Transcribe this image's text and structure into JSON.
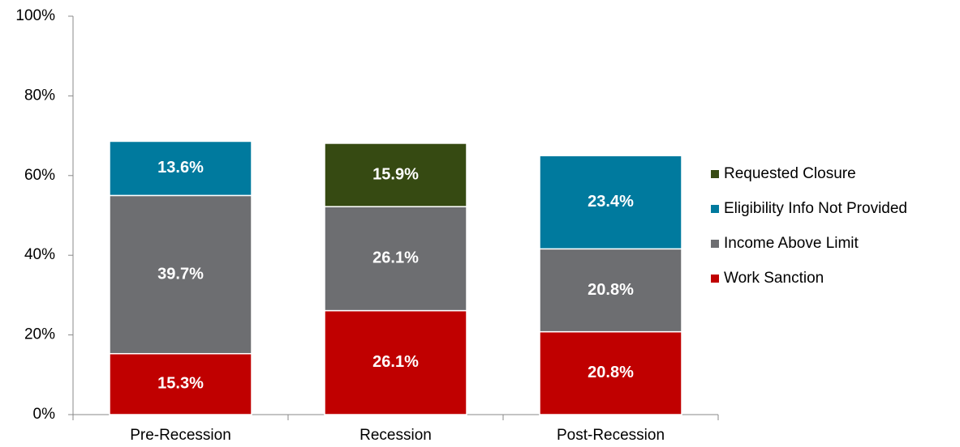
{
  "chart_data": {
    "type": "stacked_bar",
    "categories": [
      "Pre-Recession",
      "Recession",
      "Post-Recession"
    ],
    "series": [
      {
        "name": "Work Sanction",
        "color": "#c00000",
        "values": [
          15.3,
          26.1,
          20.8
        ],
        "value_labels": [
          "15.3%",
          "26.1%",
          "20.8%"
        ]
      },
      {
        "name": "Income Above Limit",
        "color": "#6d6e71",
        "values": [
          39.7,
          26.1,
          20.8
        ],
        "value_labels": [
          "39.7%",
          "26.1%",
          "20.8%"
        ]
      },
      {
        "name": "Eligibility Info Not Provided",
        "color": "#007a9e",
        "values": [
          13.6,
          null,
          23.4
        ],
        "value_labels": [
          "13.6%",
          null,
          "23.4%"
        ]
      },
      {
        "name": "Requested Closure",
        "color": "#364a12",
        "values": [
          null,
          15.9,
          null
        ],
        "value_labels": [
          null,
          "15.9%",
          null
        ]
      }
    ],
    "ylim": [
      0,
      100
    ],
    "yticks": [
      {
        "value": 0,
        "label": "0%"
      },
      {
        "value": 20,
        "label": "20%"
      },
      {
        "value": 40,
        "label": "40%"
      },
      {
        "value": 60,
        "label": "60%"
      },
      {
        "value": 80,
        "label": "80%"
      },
      {
        "value": 100,
        "label": "100%"
      }
    ],
    "legend": "right"
  }
}
